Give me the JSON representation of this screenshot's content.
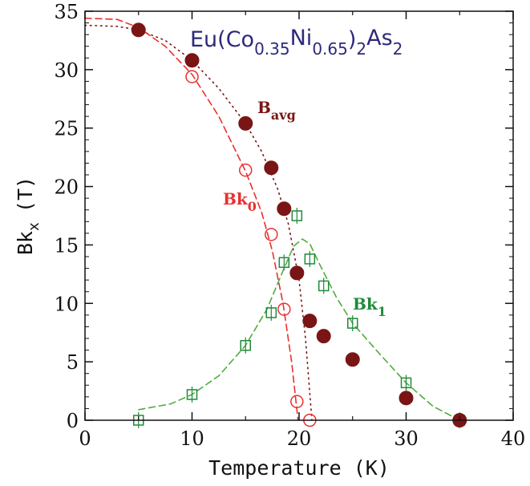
{
  "chart_data": {
    "type": "scatter",
    "title": "",
    "annotation": {
      "compound": {
        "base": "Eu(Co",
        "sub1": "0.35",
        "mid": "Ni",
        "sub2": "0.65",
        "close": ")",
        "sub3": "2",
        "as": "As",
        "sub4": "2"
      }
    },
    "xlabel": "Temperature (K)",
    "ylabel": {
      "base": "Bk",
      "sub": "x",
      "unit": "(T)"
    },
    "xlim": [
      0,
      40
    ],
    "ylim": [
      0,
      35
    ],
    "xticks": [
      "0",
      "10",
      "20",
      "30",
      "40"
    ],
    "yticks": [
      "0",
      "5",
      "10",
      "15",
      "20",
      "25",
      "30",
      "35"
    ],
    "grid": false,
    "legend": "none",
    "series": [
      {
        "name": "B_avg",
        "label_base": "B",
        "label_sub": "avg",
        "color": "#7a1515",
        "marker": "filled-circle",
        "x": [
          5,
          10,
          15,
          17.4,
          18.6,
          19.8,
          21,
          22.3,
          25,
          30,
          35
        ],
        "y": [
          33.4,
          30.8,
          25.4,
          21.6,
          18.1,
          12.6,
          8.5,
          7.2,
          5.2,
          1.9,
          0
        ]
      },
      {
        "name": "Bk_0",
        "label_base": "Bk",
        "label_sub": "0",
        "color": "#e8302e",
        "marker": "open-circle",
        "x": [
          5,
          10,
          15,
          17.4,
          18.6,
          19.8,
          21
        ],
        "y": [
          33.4,
          29.4,
          21.4,
          15.9,
          9.5,
          1.6,
          0
        ]
      },
      {
        "name": "Bk_1",
        "label_base": "Bk",
        "label_sub": "1",
        "color": "#1f8a3a",
        "marker": "open-square",
        "x": [
          5,
          10,
          15,
          17.4,
          18.6,
          19.8,
          21,
          22.3,
          25,
          30,
          35
        ],
        "y": [
          0,
          2.2,
          6.4,
          9.2,
          13.5,
          17.5,
          13.8,
          11.5,
          8.3,
          3.2,
          0
        ]
      }
    ],
    "fits": [
      {
        "series": "B_avg",
        "style": "dotted",
        "color": "#7a1515",
        "x": [
          0,
          3,
          5,
          7.5,
          10,
          12.5,
          15,
          16.5,
          18,
          19,
          20,
          20.6,
          21.2
        ],
        "y": [
          33.8,
          33.7,
          33.4,
          32.5,
          30.8,
          28.4,
          25.4,
          23.0,
          19.8,
          16.8,
          12.0,
          7.0,
          0
        ]
      },
      {
        "series": "Bk_0",
        "style": "dashed",
        "color": "#e8302e",
        "x": [
          0,
          3,
          5,
          7.5,
          10,
          12.5,
          15,
          16.5,
          17.5,
          18.5,
          19.3,
          19.9
        ],
        "y": [
          34.4,
          34.3,
          33.6,
          32.0,
          29.6,
          26.0,
          21.3,
          17.8,
          14.5,
          10.0,
          5.0,
          0
        ]
      },
      {
        "series": "Bk_1",
        "style": "dashed",
        "color": "#4fad3c",
        "x": [
          5,
          8,
          10,
          12.5,
          15,
          17,
          18.5,
          19.5,
          20.3,
          21,
          22,
          23.5,
          25,
          27.5,
          30,
          32.5,
          35
        ],
        "y": [
          0.9,
          1.4,
          2.2,
          3.8,
          6.4,
          9.5,
          12.8,
          14.9,
          15.5,
          15.1,
          13.2,
          10.5,
          8.3,
          5.7,
          3.2,
          1.2,
          0
        ]
      }
    ]
  }
}
